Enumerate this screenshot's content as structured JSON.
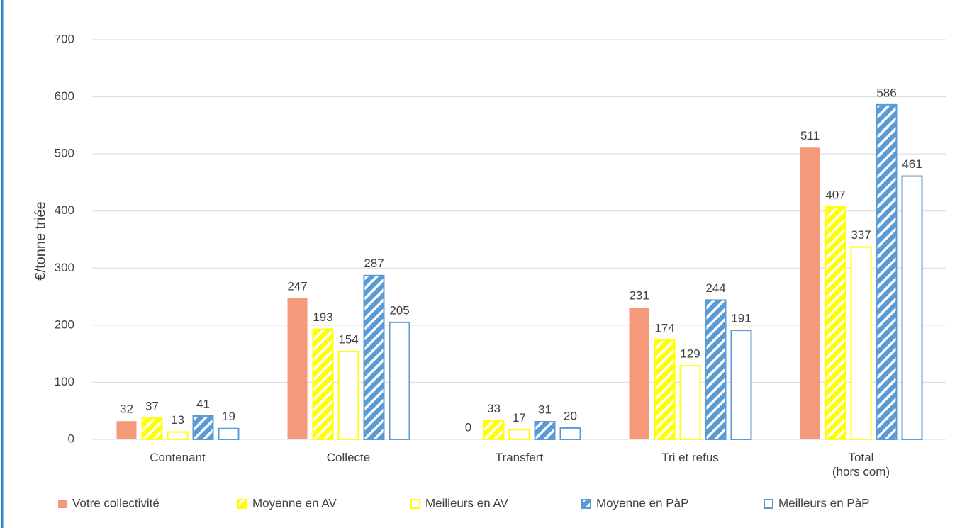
{
  "chart_data": {
    "type": "bar",
    "y_label": "€/tonne triée",
    "categories": [
      "Contenant",
      "Collecte",
      "Transfert",
      "Tri et refus",
      "Total\n(hors com)"
    ],
    "series": [
      {
        "name": "Votre collectivité",
        "color": "#f4997a",
        "fill": "solid",
        "values": [
          32,
          247,
          0,
          231,
          511
        ]
      },
      {
        "name": "Moyenne en AV",
        "color": "#ffff00",
        "fill": "hatch",
        "values": [
          37,
          193,
          33,
          174,
          407
        ]
      },
      {
        "name": "Meilleurs en AV",
        "color": "#ffff00",
        "fill": "outline",
        "values": [
          13,
          154,
          17,
          129,
          337
        ]
      },
      {
        "name": "Moyenne en PàP",
        "color": "#5b9bd5",
        "fill": "hatch",
        "values": [
          41,
          287,
          31,
          244,
          586
        ]
      },
      {
        "name": "Meilleurs en PàP",
        "color": "#5b9bd5",
        "fill": "outline",
        "values": [
          19,
          205,
          20,
          191,
          461
        ]
      }
    ],
    "ylim": [
      0,
      700
    ],
    "yticks": [
      0,
      100,
      200,
      300,
      400,
      500,
      600,
      700
    ],
    "grid": true,
    "legend": "bottom"
  }
}
